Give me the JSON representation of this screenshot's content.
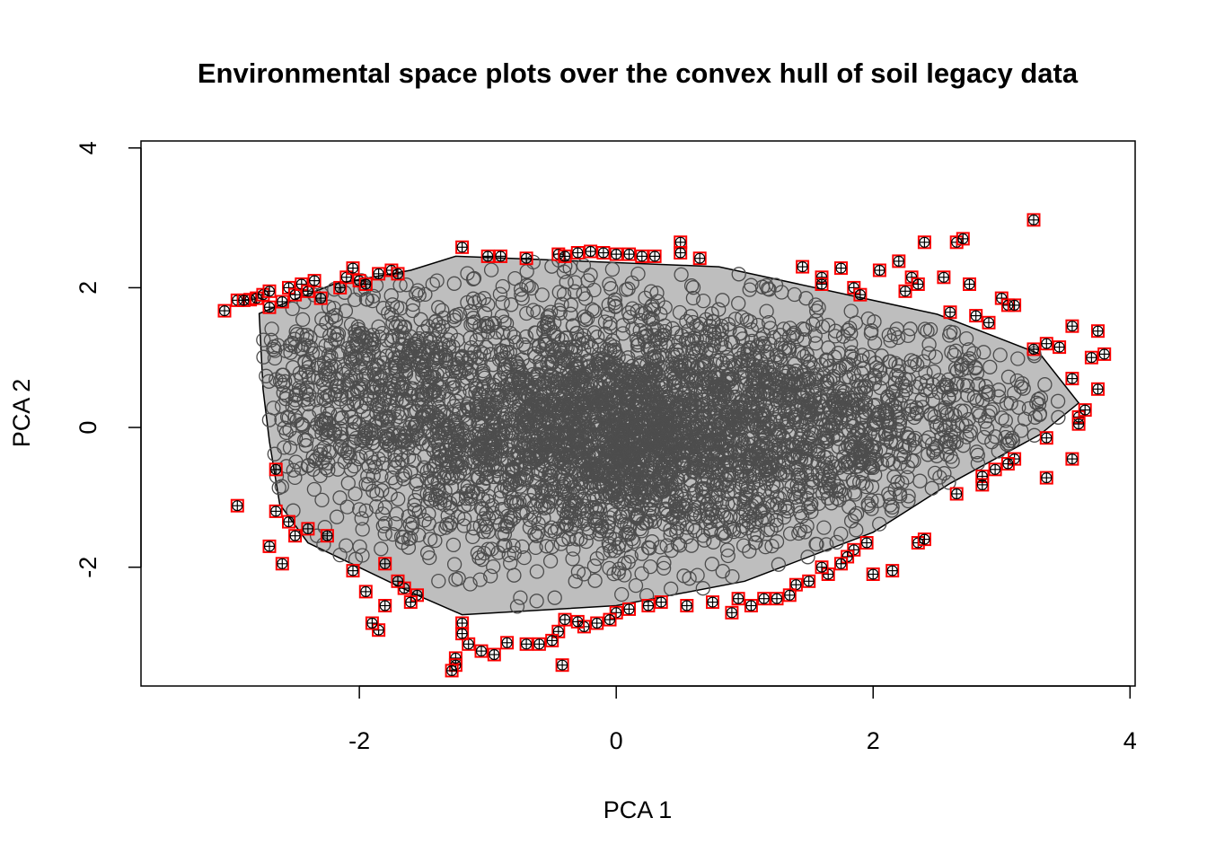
{
  "chart_data": {
    "type": "scatter",
    "title": "Environmental space plots over the convex hull of soil legacy data",
    "xlabel": "PCA 1",
    "ylabel": "PCA 2",
    "xlim": [
      -3.7,
      4.04
    ],
    "ylim": [
      -3.7,
      4.1
    ],
    "xticks": [
      -2,
      0,
      2,
      4
    ],
    "yticks": [
      -2,
      0,
      2,
      4
    ],
    "grid": false,
    "colors": {
      "hull_fill": "#bebebe",
      "hull_edge": "#000000",
      "points": "#4d4d4d",
      "outliers": "#ff0000"
    },
    "hull_vertices": [
      [
        -2.78,
        1.63
      ],
      [
        -2.66,
        1.72
      ],
      [
        -2.2,
        2.05
      ],
      [
        -1.6,
        2.25
      ],
      [
        -1.25,
        2.45
      ],
      [
        -0.55,
        2.4
      ],
      [
        0.8,
        2.3
      ],
      [
        2.5,
        1.62
      ],
      [
        3.3,
        1.05
      ],
      [
        3.6,
        0.35
      ],
      [
        3.3,
        -0.1
      ],
      [
        2.6,
        -0.8
      ],
      [
        2.0,
        -1.5
      ],
      [
        1.0,
        -2.2
      ],
      [
        0.0,
        -2.55
      ],
      [
        -1.2,
        -2.68
      ],
      [
        -1.55,
        -2.4
      ],
      [
        -2.4,
        -1.65
      ],
      [
        -2.62,
        -1.1
      ],
      [
        -2.7,
        -0.2
      ],
      [
        -2.75,
        0.55
      ]
    ],
    "series": [
      {
        "style": "open-circle",
        "note": "legacy data points (dense cloud inside hull)",
        "n": 4500
      },
      {
        "style": "red-square-crossed-circle",
        "note": "points outside convex hull",
        "values": [
          [
            3.25,
            2.97
          ],
          [
            -3.05,
            1.67
          ],
          [
            -2.95,
            1.82
          ],
          [
            -2.85,
            1.83
          ],
          [
            -2.8,
            1.85
          ],
          [
            -2.75,
            1.9
          ],
          [
            -2.7,
            1.95
          ],
          [
            -2.6,
            1.8
          ],
          [
            -2.55,
            2.0
          ],
          [
            -2.5,
            1.9
          ],
          [
            -2.45,
            2.05
          ],
          [
            -2.4,
            1.95
          ],
          [
            -2.35,
            2.1
          ],
          [
            -2.3,
            1.85
          ],
          [
            -2.15,
            2.0
          ],
          [
            -2.1,
            2.15
          ],
          [
            -2.05,
            2.28
          ],
          [
            -2.0,
            2.1
          ],
          [
            -1.95,
            2.05
          ],
          [
            -1.85,
            2.2
          ],
          [
            -1.75,
            2.25
          ],
          [
            -1.7,
            2.2
          ],
          [
            -1.2,
            2.58
          ],
          [
            -1.0,
            2.45
          ],
          [
            -0.9,
            2.45
          ],
          [
            -0.7,
            2.42
          ],
          [
            -0.45,
            2.48
          ],
          [
            -0.4,
            2.45
          ],
          [
            -0.3,
            2.5
          ],
          [
            -0.2,
            2.52
          ],
          [
            -0.1,
            2.5
          ],
          [
            0.0,
            2.48
          ],
          [
            0.1,
            2.48
          ],
          [
            0.2,
            2.45
          ],
          [
            0.3,
            2.45
          ],
          [
            0.5,
            2.65
          ],
          [
            0.5,
            2.5
          ],
          [
            0.65,
            2.42
          ],
          [
            1.45,
            2.3
          ],
          [
            1.6,
            2.15
          ],
          [
            1.6,
            2.05
          ],
          [
            1.75,
            2.28
          ],
          [
            1.85,
            2.0
          ],
          [
            1.9,
            1.9
          ],
          [
            2.05,
            2.25
          ],
          [
            2.2,
            2.38
          ],
          [
            2.25,
            1.95
          ],
          [
            2.3,
            2.15
          ],
          [
            2.35,
            2.05
          ],
          [
            2.4,
            2.65
          ],
          [
            2.55,
            2.15
          ],
          [
            2.6,
            1.65
          ],
          [
            2.65,
            2.65
          ],
          [
            2.7,
            2.7
          ],
          [
            2.75,
            2.05
          ],
          [
            2.8,
            1.6
          ],
          [
            2.9,
            1.5
          ],
          [
            3.0,
            1.85
          ],
          [
            3.05,
            1.75
          ],
          [
            3.1,
            1.75
          ],
          [
            3.25,
            1.12
          ],
          [
            3.35,
            1.2
          ],
          [
            3.45,
            1.15
          ],
          [
            3.55,
            1.45
          ],
          [
            3.55,
            0.7
          ],
          [
            3.6,
            0.15
          ],
          [
            3.65,
            0.25
          ],
          [
            3.7,
            1.0
          ],
          [
            3.75,
            1.38
          ],
          [
            3.75,
            0.55
          ],
          [
            3.8,
            1.05
          ],
          [
            3.6,
            0.05
          ],
          [
            3.55,
            -0.45
          ],
          [
            3.35,
            -0.15
          ],
          [
            3.35,
            -0.72
          ],
          [
            3.1,
            -0.45
          ],
          [
            3.05,
            -0.52
          ],
          [
            2.95,
            -0.6
          ],
          [
            2.85,
            -0.7
          ],
          [
            2.85,
            -0.82
          ],
          [
            2.65,
            -0.95
          ],
          [
            2.35,
            -1.65
          ],
          [
            2.4,
            -1.6
          ],
          [
            2.15,
            -2.05
          ],
          [
            2.0,
            -2.1
          ],
          [
            1.95,
            -1.65
          ],
          [
            1.85,
            -1.75
          ],
          [
            1.8,
            -1.85
          ],
          [
            1.75,
            -1.95
          ],
          [
            1.65,
            -2.1
          ],
          [
            1.6,
            -2.0
          ],
          [
            1.5,
            -2.2
          ],
          [
            1.4,
            -2.25
          ],
          [
            1.35,
            -2.4
          ],
          [
            1.25,
            -2.45
          ],
          [
            1.15,
            -2.45
          ],
          [
            1.05,
            -2.55
          ],
          [
            0.95,
            -2.45
          ],
          [
            0.9,
            -2.65
          ],
          [
            0.75,
            -2.5
          ],
          [
            0.55,
            -2.55
          ],
          [
            0.35,
            -2.5
          ],
          [
            0.25,
            -2.55
          ],
          [
            0.1,
            -2.6
          ],
          [
            0.0,
            -2.65
          ],
          [
            -0.05,
            -2.75
          ],
          [
            -0.15,
            -2.8
          ],
          [
            -0.25,
            -2.85
          ],
          [
            -0.3,
            -2.78
          ],
          [
            -0.4,
            -2.75
          ],
          [
            -0.45,
            -2.92
          ],
          [
            -0.5,
            -3.05
          ],
          [
            -0.6,
            -3.1
          ],
          [
            -0.7,
            -3.1
          ],
          [
            -0.85,
            -3.08
          ],
          [
            -0.95,
            -3.25
          ],
          [
            -1.05,
            -3.2
          ],
          [
            -1.15,
            -3.1
          ],
          [
            -1.2,
            -2.8
          ],
          [
            -1.2,
            -2.95
          ],
          [
            -1.25,
            -3.3
          ],
          [
            -1.25,
            -3.4
          ],
          [
            -1.28,
            -3.48
          ],
          [
            -0.42,
            -3.4
          ],
          [
            -1.55,
            -2.4
          ],
          [
            -1.6,
            -2.5
          ],
          [
            -1.65,
            -2.3
          ],
          [
            -1.7,
            -2.2
          ],
          [
            -1.8,
            -2.55
          ],
          [
            -1.85,
            -2.9
          ],
          [
            -1.9,
            -2.8
          ],
          [
            -1.95,
            -2.35
          ],
          [
            -2.05,
            -2.05
          ],
          [
            -1.8,
            -1.95
          ],
          [
            -2.25,
            -1.55
          ],
          [
            -2.4,
            -1.45
          ],
          [
            -2.5,
            -1.55
          ],
          [
            -2.55,
            -1.35
          ],
          [
            -2.6,
            -1.95
          ],
          [
            -2.65,
            -1.2
          ],
          [
            -2.7,
            -1.7
          ],
          [
            -2.95,
            -1.12
          ],
          [
            -2.65,
            -0.6
          ],
          [
            -2.7,
            1.72
          ],
          [
            -2.9,
            1.82
          ]
        ]
      }
    ]
  }
}
